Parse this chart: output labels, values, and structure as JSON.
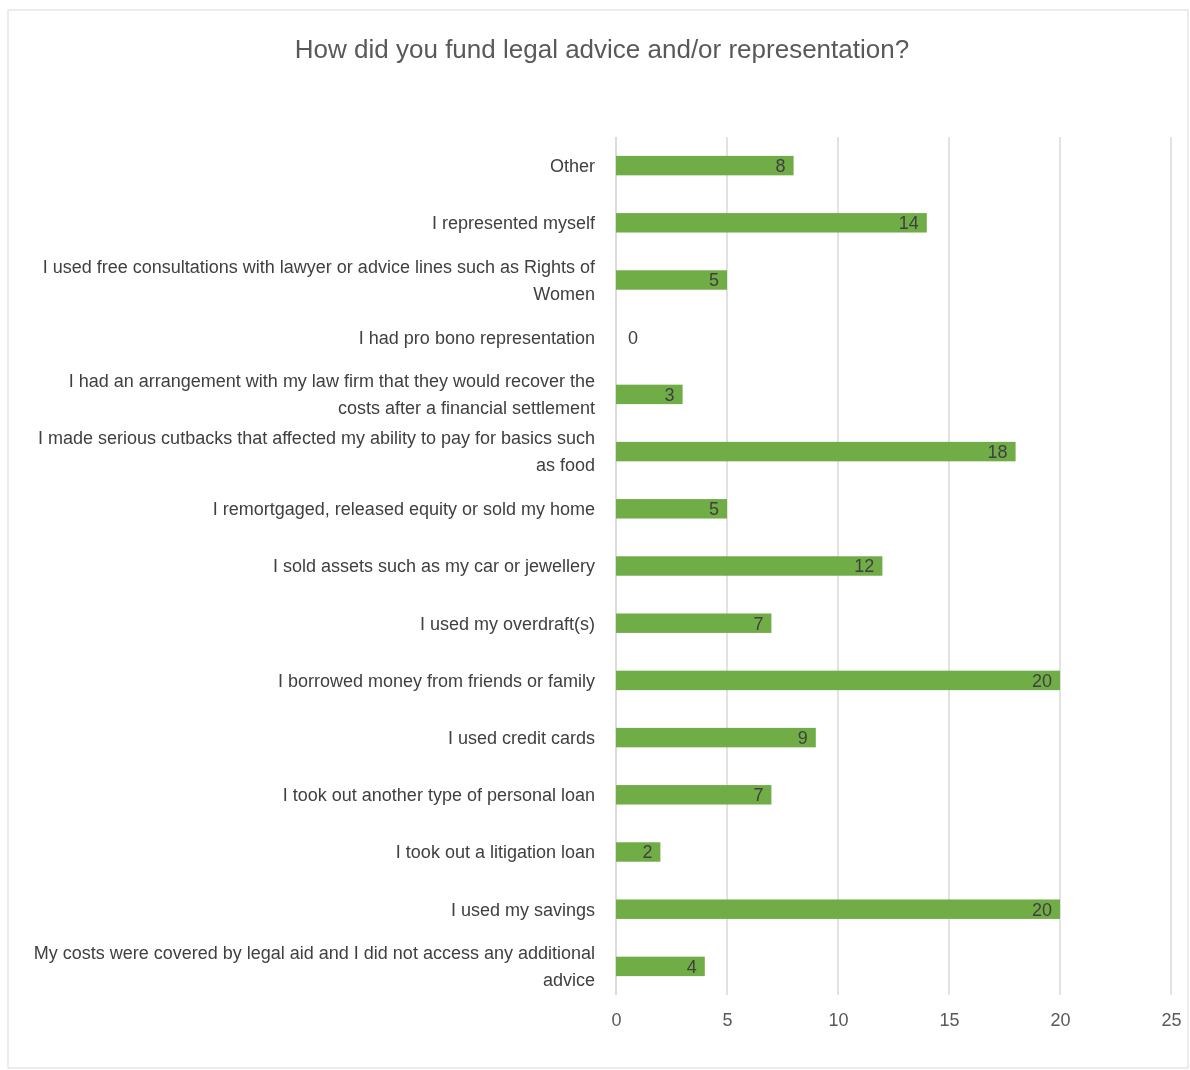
{
  "chart_data": {
    "type": "bar",
    "orientation": "horizontal",
    "title": "How did you fund legal advice and/or representation?",
    "categories": [
      "Other",
      "I represented myself",
      "I used free consultations with lawyer or advice lines such as Rights of Women",
      "I had pro bono representation",
      "I had an arrangement with my law firm that they would recover the costs after a financial settlement",
      "I made serious cutbacks that affected my ability to pay for basics such as food",
      "I remortgaged, released equity or sold my home",
      "I sold assets such as my car or jewellery",
      "I used my overdraft(s)",
      "I borrowed money from friends or family",
      "I used credit cards",
      "I took out another type of personal loan",
      "I took out a litigation loan",
      "I used my savings",
      "My costs were covered by legal aid and I did not access any additional advice"
    ],
    "values": [
      8,
      14,
      5,
      0,
      3,
      18,
      5,
      12,
      7,
      20,
      9,
      7,
      2,
      20,
      4
    ],
    "color": "#70ad47",
    "xlim": [
      0,
      25
    ],
    "xticks": [
      0,
      5,
      10,
      15,
      20,
      25
    ],
    "grid": "x",
    "data_labels": true
  }
}
